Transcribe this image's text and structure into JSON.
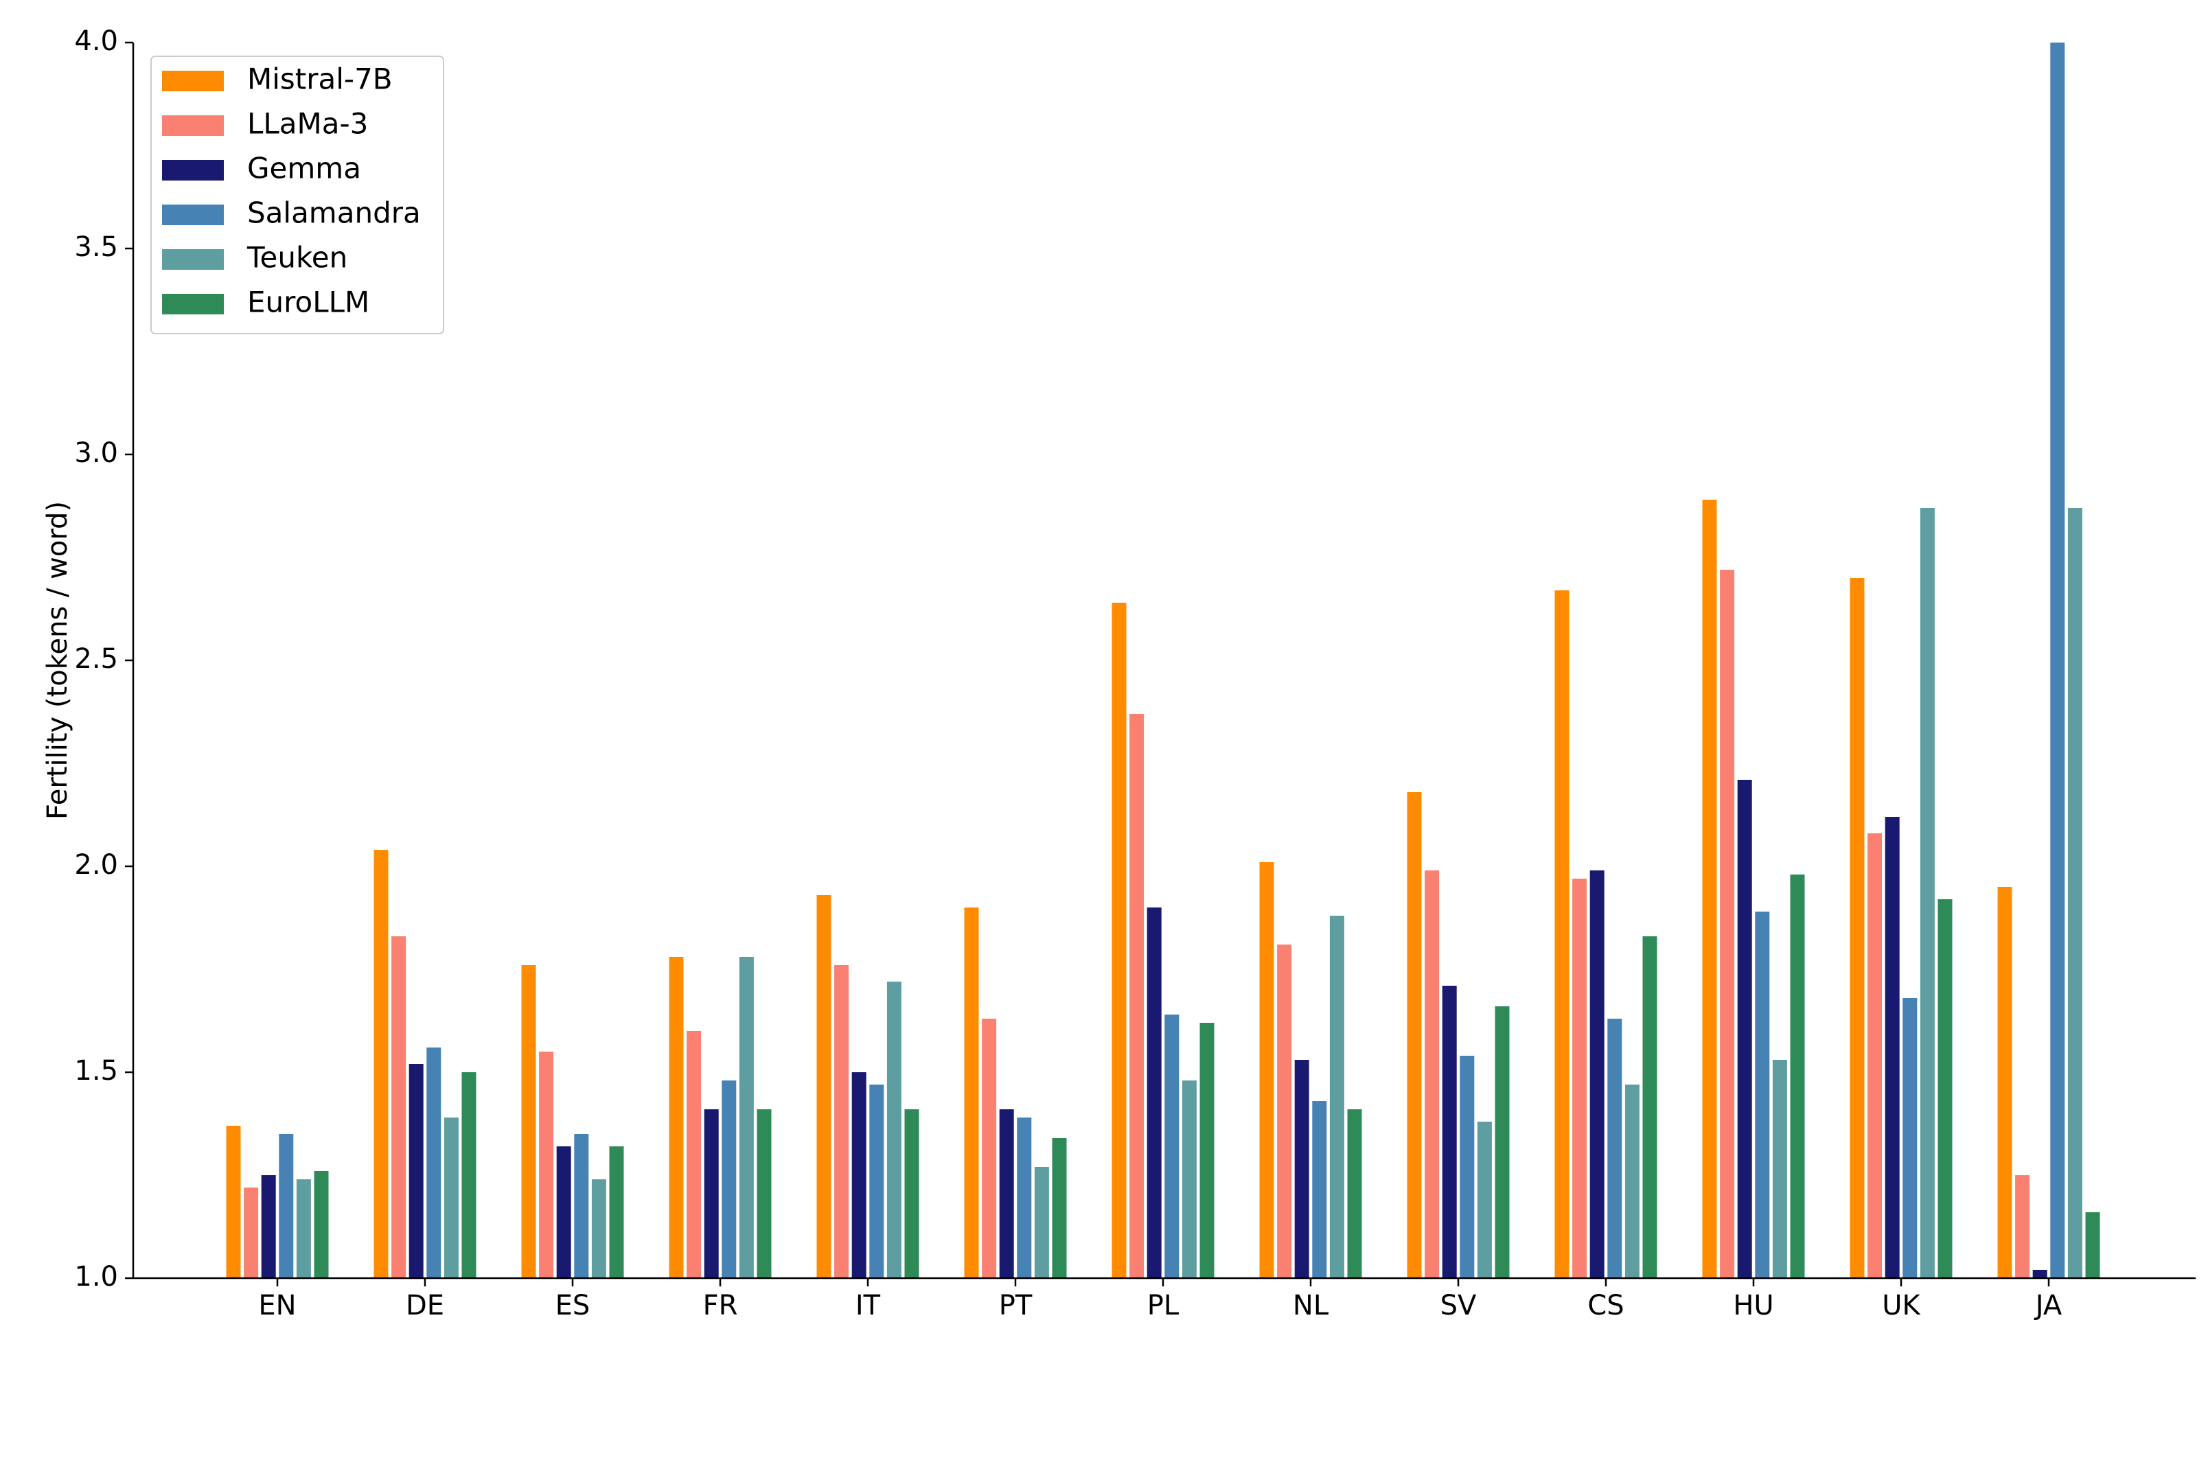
{
  "chart_data": {
    "type": "bar",
    "title": "",
    "xlabel": "",
    "ylabel": "Fertility (tokens / word)",
    "ylim": [
      1.0,
      4.0
    ],
    "yticks": [
      "1.0",
      "1.5",
      "2.0",
      "2.5",
      "3.0",
      "3.5",
      "4.0"
    ],
    "grid": false,
    "legend_position": "top-left",
    "categories": [
      "EN",
      "DE",
      "ES",
      "FR",
      "IT",
      "PT",
      "PL",
      "NL",
      "SV",
      "CS",
      "HU",
      "UK",
      "JA"
    ],
    "series": [
      {
        "name": "Mistral-7B",
        "color": "#ff8c00",
        "values": [
          1.37,
          2.04,
          1.76,
          1.78,
          1.93,
          1.9,
          2.64,
          2.01,
          2.18,
          2.67,
          2.89,
          2.7,
          1.95
        ]
      },
      {
        "name": "LLaMa-3",
        "color": "#fa8072",
        "values": [
          1.22,
          1.83,
          1.55,
          1.6,
          1.76,
          1.63,
          2.37,
          1.81,
          1.99,
          1.97,
          2.72,
          2.08,
          1.25
        ]
      },
      {
        "name": "Gemma",
        "color": "#191970",
        "values": [
          1.25,
          1.52,
          1.32,
          1.41,
          1.5,
          1.41,
          1.9,
          1.53,
          1.71,
          1.99,
          2.21,
          2.12,
          1.02
        ]
      },
      {
        "name": "Salamandra",
        "color": "#4682b4",
        "values": [
          1.35,
          1.56,
          1.35,
          1.48,
          1.47,
          1.39,
          1.64,
          1.43,
          1.54,
          1.63,
          1.89,
          1.68,
          4.0
        ]
      },
      {
        "name": "Teuken",
        "color": "#5f9ea0",
        "values": [
          1.24,
          1.39,
          1.24,
          1.78,
          1.72,
          1.27,
          1.48,
          1.88,
          1.38,
          1.47,
          1.53,
          2.87,
          2.87
        ]
      },
      {
        "name": "EuroLLM",
        "color": "#2e8b57",
        "values": [
          1.26,
          1.5,
          1.32,
          1.41,
          1.41,
          1.34,
          1.62,
          1.41,
          1.66,
          1.83,
          1.98,
          1.92,
          1.16
        ]
      }
    ]
  }
}
